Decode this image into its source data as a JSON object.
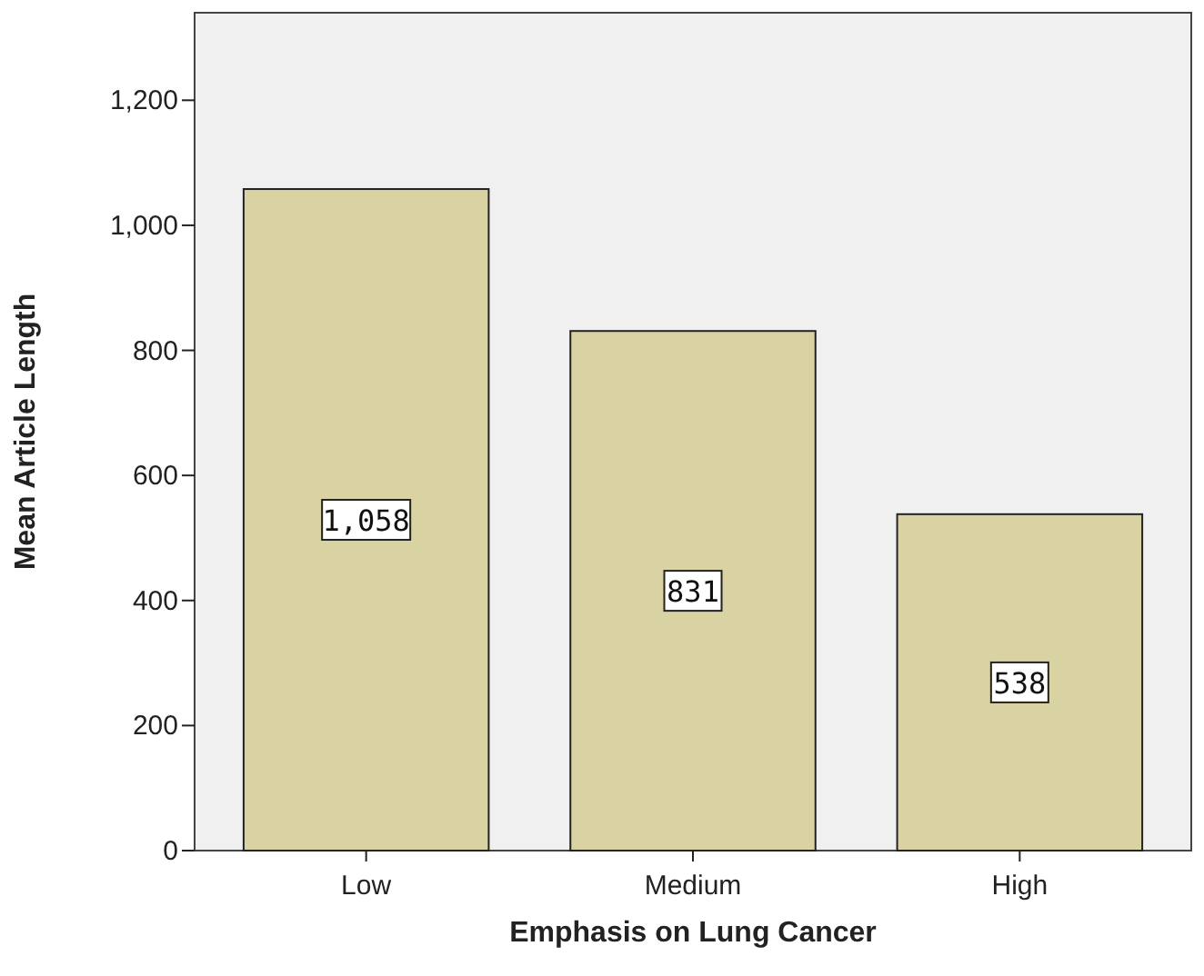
{
  "chart_data": {
    "type": "bar",
    "xlabel": "Emphasis on Lung Cancer",
    "ylabel": "Mean Article Length",
    "categories": [
      "Low",
      "Medium",
      "High"
    ],
    "values": [
      1058,
      831,
      538
    ],
    "value_labels": [
      "1,058",
      "831",
      "538"
    ],
    "color": "#d9d3a3",
    "ylim": [
      0,
      1340
    ],
    "yticks": [
      {
        "value": 0,
        "label": "0"
      },
      {
        "value": 200,
        "label": "200"
      },
      {
        "value": 400,
        "label": "400"
      },
      {
        "value": 600,
        "label": "600"
      },
      {
        "value": 800,
        "label": "800"
      },
      {
        "value": 1000,
        "label": "1,000"
      },
      {
        "value": 1200,
        "label": "1,200"
      }
    ],
    "grid": false
  }
}
